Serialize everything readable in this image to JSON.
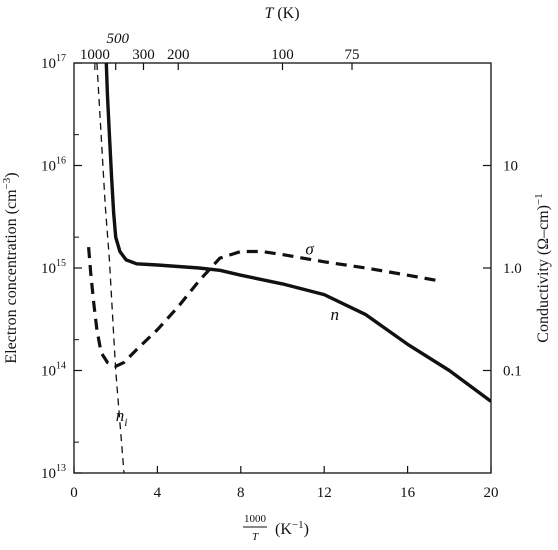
{
  "chart_data": {
    "type": "line",
    "x_axis": {
      "label_prefix": "1000",
      "label_denominator": "T",
      "label_suffix": "(K",
      "label_exp": "−1",
      "label_close": ")",
      "range": [
        0,
        20
      ],
      "ticks": [
        0,
        4,
        8,
        12,
        16,
        20
      ],
      "tick_labels": [
        "0",
        "4",
        "8",
        "12",
        "16",
        "20"
      ]
    },
    "top_axis": {
      "label_T": "T",
      "label_unit": "(K)",
      "temperatures": [
        1000,
        500,
        300,
        200,
        100,
        75
      ],
      "tick_labels": [
        "1000",
        "500",
        "300",
        "200",
        "100",
        "75"
      ]
    },
    "y_left": {
      "label_main": "Electron concentration (cm",
      "label_exp": "−3",
      "label_close": ")",
      "scale": "log",
      "range": [
        10000000000000.0,
        1e+17
      ],
      "ticks": [
        10000000000000.0,
        100000000000000.0,
        1000000000000000.0,
        1e+16,
        1e+17
      ],
      "tick_base": "10",
      "tick_exps": [
        "13",
        "14",
        "15",
        "16",
        "17"
      ]
    },
    "y_right": {
      "label_main": "Conductivity (Ω–cm)",
      "label_exp": "−1",
      "scale": "log",
      "range": [
        0.01,
        100
      ],
      "ticks": [
        0.1,
        1.0,
        10
      ],
      "tick_labels": [
        "0.1",
        "1.0",
        "10"
      ]
    },
    "series": [
      {
        "name": "n",
        "style": "solid",
        "color": "#111111",
        "axis": "left",
        "x": [
          1.55,
          1.6,
          1.7,
          1.8,
          1.9,
          2.0,
          2.2,
          2.5,
          3.0,
          4.0,
          6.0,
          7.0,
          8.0,
          10.0,
          12.0,
          14.0,
          16.0,
          18.0,
          20.0
        ],
        "y": [
          1e+17,
          5e+16,
          2e+16,
          8000000000000000.0,
          3500000000000000.0,
          2000000000000000.0,
          1450000000000000.0,
          1200000000000000.0,
          1100000000000000.0,
          1070000000000000.0,
          1000000000000000.0,
          950000000000000.0,
          850000000000000.0,
          700000000000000.0,
          550000000000000.0,
          350000000000000.0,
          180000000000000.0,
          100000000000000.0,
          50000000000000.0
        ]
      },
      {
        "name": "σ",
        "style": "dashed",
        "color": "#111111",
        "axis": "right",
        "x": [
          0.7,
          0.8,
          0.95,
          1.1,
          1.3,
          1.6,
          2.0,
          2.4,
          3.0,
          4.0,
          5.0,
          6.0,
          7.0,
          8.0,
          9.0,
          10.0,
          12.0,
          14.0,
          16.0,
          17.5
        ],
        "y": [
          1.6,
          0.9,
          0.45,
          0.25,
          0.15,
          0.12,
          0.11,
          0.12,
          0.16,
          0.25,
          0.42,
          0.75,
          1.25,
          1.45,
          1.45,
          1.35,
          1.15,
          1.0,
          0.85,
          0.75
        ]
      },
      {
        "name": "n",
        "subscript": "i",
        "style": "thin-dashed",
        "color": "#111111",
        "axis": "left",
        "x": [
          1.1,
          1.3,
          1.5,
          1.7,
          2.0,
          2.4
        ],
        "y": [
          1e+17,
          2e+16,
          4000000000000000.0,
          1200000000000000.0,
          100000000000000.0,
          10000000000000.0
        ]
      }
    ],
    "annotations": [
      {
        "text": "σ",
        "x": 11.1,
        "y_left": 1350000000000000.0,
        "italic": true
      },
      {
        "text": "n",
        "x": 12.3,
        "y_left": 310000000000000.0,
        "italic": true
      },
      {
        "text": "n",
        "sub": "i",
        "x": 2.0,
        "y_left": 32000000000000.0,
        "italic": true
      }
    ],
    "grid": false,
    "legend": "none"
  }
}
